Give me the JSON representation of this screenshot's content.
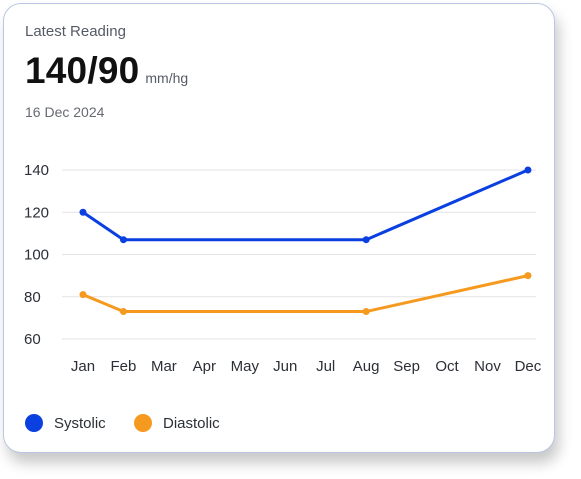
{
  "card": {
    "label": "Latest Reading",
    "reading_value": "140/90",
    "reading_unit": "mm/hg",
    "date": "16 Dec 2024"
  },
  "chart_data": {
    "type": "line",
    "categories": [
      "Jan",
      "Feb",
      "Mar",
      "Apr",
      "May",
      "Jun",
      "Jul",
      "Aug",
      "Sep",
      "Oct",
      "Nov",
      "Dec"
    ],
    "yticks": [
      140,
      120,
      100,
      80,
      60
    ],
    "ylim": [
      60,
      140
    ],
    "grid": true,
    "legend_position": "bottom-left",
    "series": [
      {
        "name": "Systolic",
        "color": "#0a3fe0",
        "points": [
          [
            0,
            120
          ],
          [
            1,
            107
          ],
          [
            7,
            107
          ],
          [
            11,
            140
          ]
        ]
      },
      {
        "name": "Diastolic",
        "color": "#f59a1e",
        "points": [
          [
            0,
            81
          ],
          [
            1,
            73
          ],
          [
            7,
            73
          ],
          [
            11,
            90
          ]
        ]
      }
    ]
  }
}
